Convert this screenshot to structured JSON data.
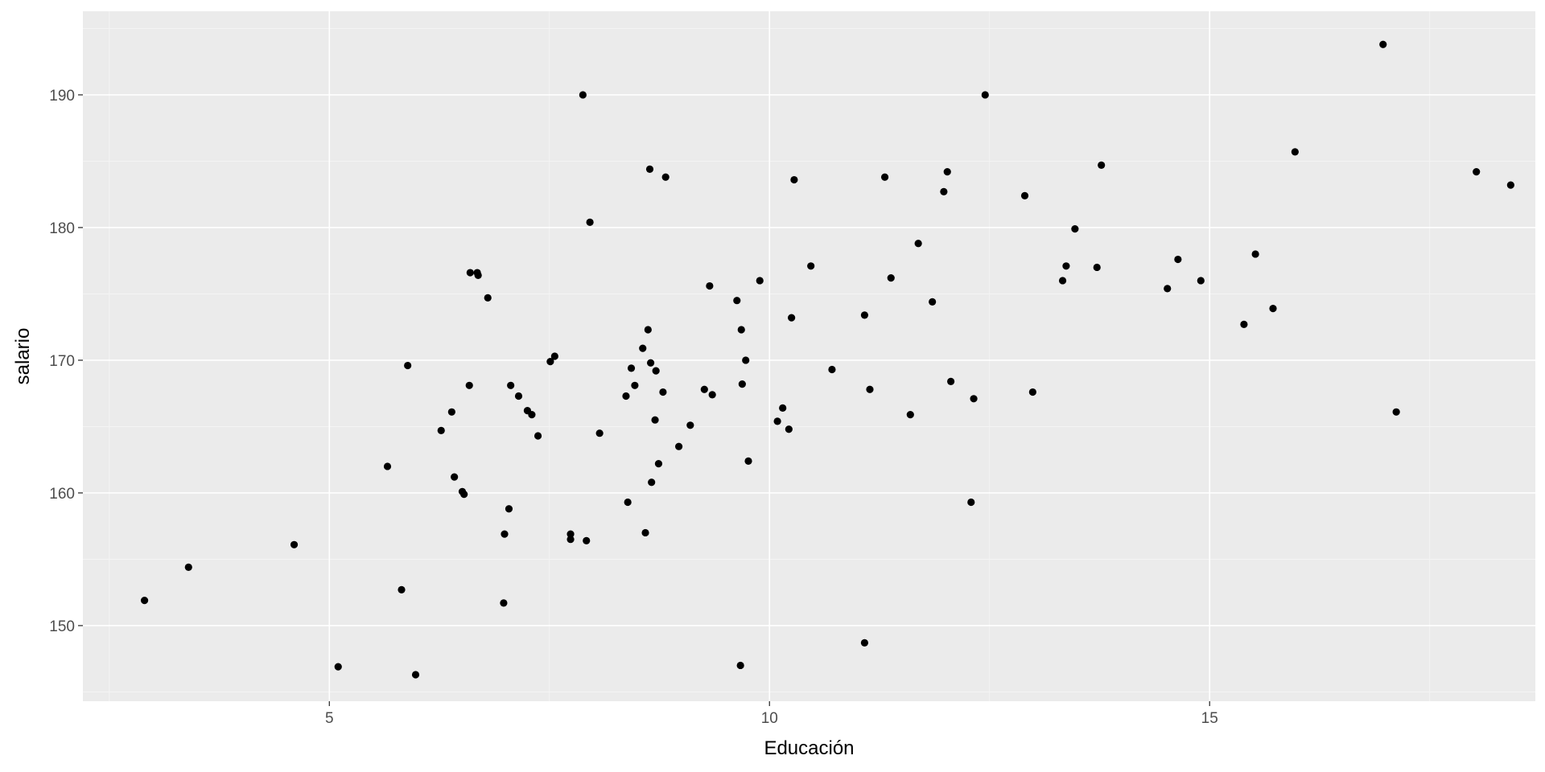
{
  "chart_data": {
    "type": "scatter",
    "xlabel": "Educación",
    "ylabel": "salario",
    "xlim": [
      2.2,
      18.7
    ],
    "ylim": [
      144.3,
      196.3
    ],
    "x_ticks": [
      5,
      10,
      15
    ],
    "x_tick_labels": [
      "5",
      "10",
      "15"
    ],
    "y_ticks": [
      150,
      160,
      170,
      180,
      190
    ],
    "y_tick_labels": [
      "150",
      "160",
      "170",
      "180",
      "190"
    ],
    "grid": true,
    "legend": "none",
    "colors": {
      "panel": "#ebebeb",
      "grid": "#ffffff",
      "point": "#000000"
    },
    "points": [
      {
        "x": 2.9,
        "y": 151.9
      },
      {
        "x": 3.4,
        "y": 154.4
      },
      {
        "x": 4.6,
        "y": 156.1
      },
      {
        "x": 5.1,
        "y": 146.9
      },
      {
        "x": 5.66,
        "y": 162.0
      },
      {
        "x": 5.82,
        "y": 152.7
      },
      {
        "x": 5.89,
        "y": 169.6
      },
      {
        "x": 5.98,
        "y": 146.3
      },
      {
        "x": 6.27,
        "y": 164.7
      },
      {
        "x": 6.39,
        "y": 166.1
      },
      {
        "x": 6.42,
        "y": 161.2
      },
      {
        "x": 6.51,
        "y": 160.1
      },
      {
        "x": 6.53,
        "y": 159.9
      },
      {
        "x": 6.59,
        "y": 168.1
      },
      {
        "x": 6.6,
        "y": 176.6
      },
      {
        "x": 6.68,
        "y": 176.6
      },
      {
        "x": 6.69,
        "y": 176.4
      },
      {
        "x": 6.8,
        "y": 174.7
      },
      {
        "x": 6.98,
        "y": 151.7
      },
      {
        "x": 6.99,
        "y": 156.9
      },
      {
        "x": 7.04,
        "y": 158.8
      },
      {
        "x": 7.06,
        "y": 168.1
      },
      {
        "x": 7.15,
        "y": 167.3
      },
      {
        "x": 7.25,
        "y": 166.2
      },
      {
        "x": 7.3,
        "y": 165.9
      },
      {
        "x": 7.37,
        "y": 164.3
      },
      {
        "x": 7.51,
        "y": 169.9
      },
      {
        "x": 7.56,
        "y": 170.3
      },
      {
        "x": 7.74,
        "y": 156.9
      },
      {
        "x": 7.74,
        "y": 156.5
      },
      {
        "x": 7.88,
        "y": 190.0
      },
      {
        "x": 7.92,
        "y": 156.4
      },
      {
        "x": 7.96,
        "y": 180.4
      },
      {
        "x": 8.07,
        "y": 164.5
      },
      {
        "x": 8.37,
        "y": 167.3
      },
      {
        "x": 8.39,
        "y": 159.3
      },
      {
        "x": 8.43,
        "y": 169.4
      },
      {
        "x": 8.47,
        "y": 168.1
      },
      {
        "x": 8.56,
        "y": 170.9
      },
      {
        "x": 8.59,
        "y": 157.0
      },
      {
        "x": 8.62,
        "y": 172.3
      },
      {
        "x": 8.64,
        "y": 184.4
      },
      {
        "x": 8.65,
        "y": 169.8
      },
      {
        "x": 8.66,
        "y": 160.8
      },
      {
        "x": 8.7,
        "y": 165.5
      },
      {
        "x": 8.71,
        "y": 169.2
      },
      {
        "x": 8.74,
        "y": 162.2
      },
      {
        "x": 8.79,
        "y": 167.6
      },
      {
        "x": 8.82,
        "y": 183.8
      },
      {
        "x": 8.97,
        "y": 163.5
      },
      {
        "x": 9.1,
        "y": 165.1
      },
      {
        "x": 9.26,
        "y": 167.8
      },
      {
        "x": 9.32,
        "y": 175.6
      },
      {
        "x": 9.35,
        "y": 167.4
      },
      {
        "x": 9.63,
        "y": 174.5
      },
      {
        "x": 9.67,
        "y": 147.0
      },
      {
        "x": 9.68,
        "y": 172.3
      },
      {
        "x": 9.69,
        "y": 168.2
      },
      {
        "x": 9.73,
        "y": 170.0
      },
      {
        "x": 9.76,
        "y": 162.4
      },
      {
        "x": 9.89,
        "y": 176.0
      },
      {
        "x": 10.09,
        "y": 165.4
      },
      {
        "x": 10.15,
        "y": 166.4
      },
      {
        "x": 10.22,
        "y": 164.8
      },
      {
        "x": 10.25,
        "y": 173.2
      },
      {
        "x": 10.28,
        "y": 183.6
      },
      {
        "x": 10.47,
        "y": 177.1
      },
      {
        "x": 10.71,
        "y": 169.3
      },
      {
        "x": 11.08,
        "y": 148.7
      },
      {
        "x": 11.08,
        "y": 173.4
      },
      {
        "x": 11.14,
        "y": 167.8
      },
      {
        "x": 11.31,
        "y": 183.8
      },
      {
        "x": 11.38,
        "y": 176.2
      },
      {
        "x": 11.6,
        "y": 165.9
      },
      {
        "x": 11.69,
        "y": 178.8
      },
      {
        "x": 11.85,
        "y": 174.4
      },
      {
        "x": 11.98,
        "y": 182.7
      },
      {
        "x": 12.02,
        "y": 184.2
      },
      {
        "x": 12.06,
        "y": 168.4
      },
      {
        "x": 12.29,
        "y": 159.3
      },
      {
        "x": 12.32,
        "y": 167.1
      },
      {
        "x": 12.45,
        "y": 190.0
      },
      {
        "x": 12.9,
        "y": 182.4
      },
      {
        "x": 12.99,
        "y": 167.6
      },
      {
        "x": 13.33,
        "y": 176.0
      },
      {
        "x": 13.37,
        "y": 177.1
      },
      {
        "x": 13.47,
        "y": 179.9
      },
      {
        "x": 13.72,
        "y": 177.0
      },
      {
        "x": 13.77,
        "y": 184.7
      },
      {
        "x": 14.52,
        "y": 175.4
      },
      {
        "x": 14.64,
        "y": 177.6
      },
      {
        "x": 14.9,
        "y": 176.0
      },
      {
        "x": 15.39,
        "y": 172.7
      },
      {
        "x": 15.52,
        "y": 178.0
      },
      {
        "x": 15.72,
        "y": 173.9
      },
      {
        "x": 15.97,
        "y": 185.7
      },
      {
        "x": 16.97,
        "y": 193.8
      },
      {
        "x": 17.12,
        "y": 166.1
      },
      {
        "x": 18.03,
        "y": 184.2
      },
      {
        "x": 18.42,
        "y": 183.2
      }
    ]
  }
}
